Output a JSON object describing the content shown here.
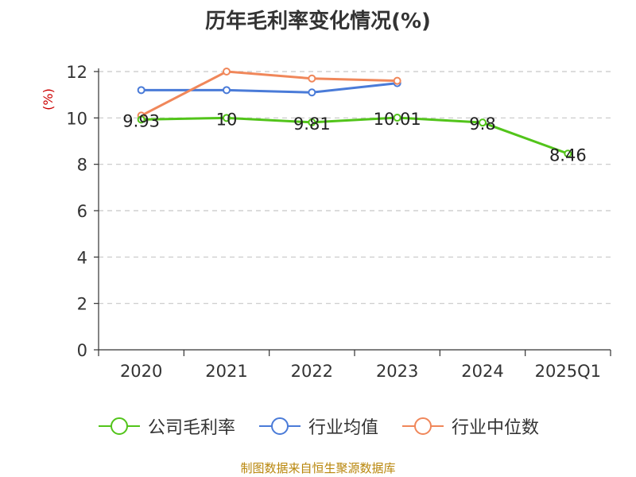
{
  "chart_data": {
    "type": "line",
    "title": "历年毛利率变化情况(%)",
    "ylabel": "(%)",
    "categories": [
      "2020",
      "2021",
      "2022",
      "2023",
      "2024",
      "2025Q1"
    ],
    "ylim": [
      0,
      12
    ],
    "yticks": [
      0,
      2,
      4,
      6,
      8,
      10,
      12
    ],
    "grid": true,
    "legend_position": "bottom",
    "series": [
      {
        "name": "公司毛利率",
        "color": "#52c41a",
        "values": [
          9.93,
          10,
          9.81,
          10.01,
          9.8,
          8.46
        ],
        "labels": [
          "9.93",
          "10",
          "9.81",
          "10.01",
          "9.8",
          "8.46"
        ]
      },
      {
        "name": "行业均值",
        "color": "#4a7bd8",
        "values": [
          11.2,
          11.2,
          11.1,
          11.5,
          null,
          null
        ]
      },
      {
        "name": "行业中位数",
        "color": "#f0875a",
        "values": [
          10.1,
          12.0,
          11.7,
          11.6,
          null,
          null
        ]
      }
    ]
  },
  "source": "制图数据来自恒生聚源数据库"
}
